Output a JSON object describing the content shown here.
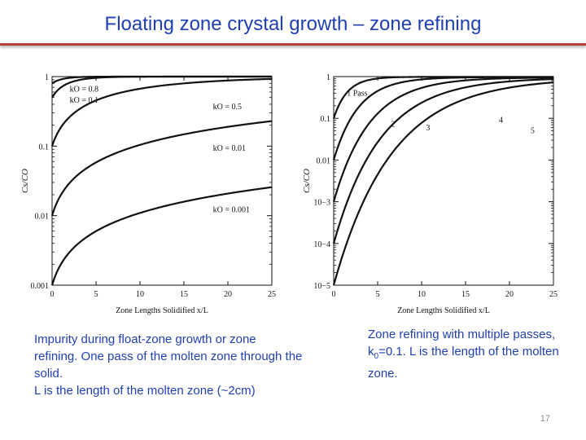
{
  "slide": {
    "title": "Floating zone crystal growth – zone refining",
    "page_number": "17",
    "caption_left_line1": "Impurity during float-zone growth or zone refining. One pass of the molten zone through the solid.",
    "caption_left_line2": "L is the length of the molten zone (~2cm)",
    "caption_right_pre": "Zone refining with multiple passes, k",
    "caption_right_sub": "0",
    "caption_right_post": "=0.1. L is the length of the molten zone.",
    "colors": {
      "title": "#1f3fb3",
      "rule": "#b3413a",
      "caption": "#1f3fb3"
    }
  },
  "chart_data": [
    {
      "type": "line",
      "xlabel": "Zone Lengths Solidified x/L",
      "ylabel": "Cs/CO",
      "xlim": [
        0,
        25
      ],
      "ylim": [
        0.001,
        1
      ],
      "yscale": "log",
      "x_ticks": [
        0,
        5,
        10,
        15,
        20,
        25
      ],
      "y_ticks": [
        {
          "value": 1,
          "label": "1"
        },
        {
          "value": 0.1,
          "label": "0.1"
        },
        {
          "value": 0.01,
          "label": "0.01"
        },
        {
          "value": 0.001,
          "label": "0.001"
        }
      ],
      "series": [
        {
          "name": "kO = 0.8",
          "k": 0.8
        },
        {
          "name": "kO = 0.1",
          "k": 0.1
        },
        {
          "name": "kO = 0.5",
          "k": 0.5
        },
        {
          "name": "kO = 0.01",
          "k": 0.01
        },
        {
          "name": "kO = 0.001",
          "k": 0.001
        }
      ]
    },
    {
      "type": "line",
      "xlabel": "Zone Lengths Solidified x/L",
      "ylabel": "Cs/CO",
      "xlim": [
        0,
        25
      ],
      "ylim": [
        1e-05,
        1
      ],
      "yscale": "log",
      "x_ticks": [
        0,
        5,
        10,
        15,
        20,
        25
      ],
      "y_ticks": [
        {
          "value": 1,
          "label": "1"
        },
        {
          "value": 0.1,
          "label": "0.1"
        },
        {
          "value": 0.01,
          "label": "0.01"
        },
        {
          "value": 0.001,
          "label": "10−3"
        },
        {
          "value": 0.0001,
          "label": "10−4"
        },
        {
          "value": 1e-05,
          "label": "10−5"
        }
      ],
      "series": [
        {
          "name": "1 Pass",
          "passes": 1,
          "start": 0.1
        },
        {
          "name": "2",
          "passes": 2,
          "start": 0.01
        },
        {
          "name": "3",
          "passes": 3,
          "start": 0.001
        },
        {
          "name": "4",
          "passes": 4,
          "start": 0.0001
        },
        {
          "name": "5",
          "passes": 5,
          "start": 1e-05
        }
      ]
    }
  ]
}
